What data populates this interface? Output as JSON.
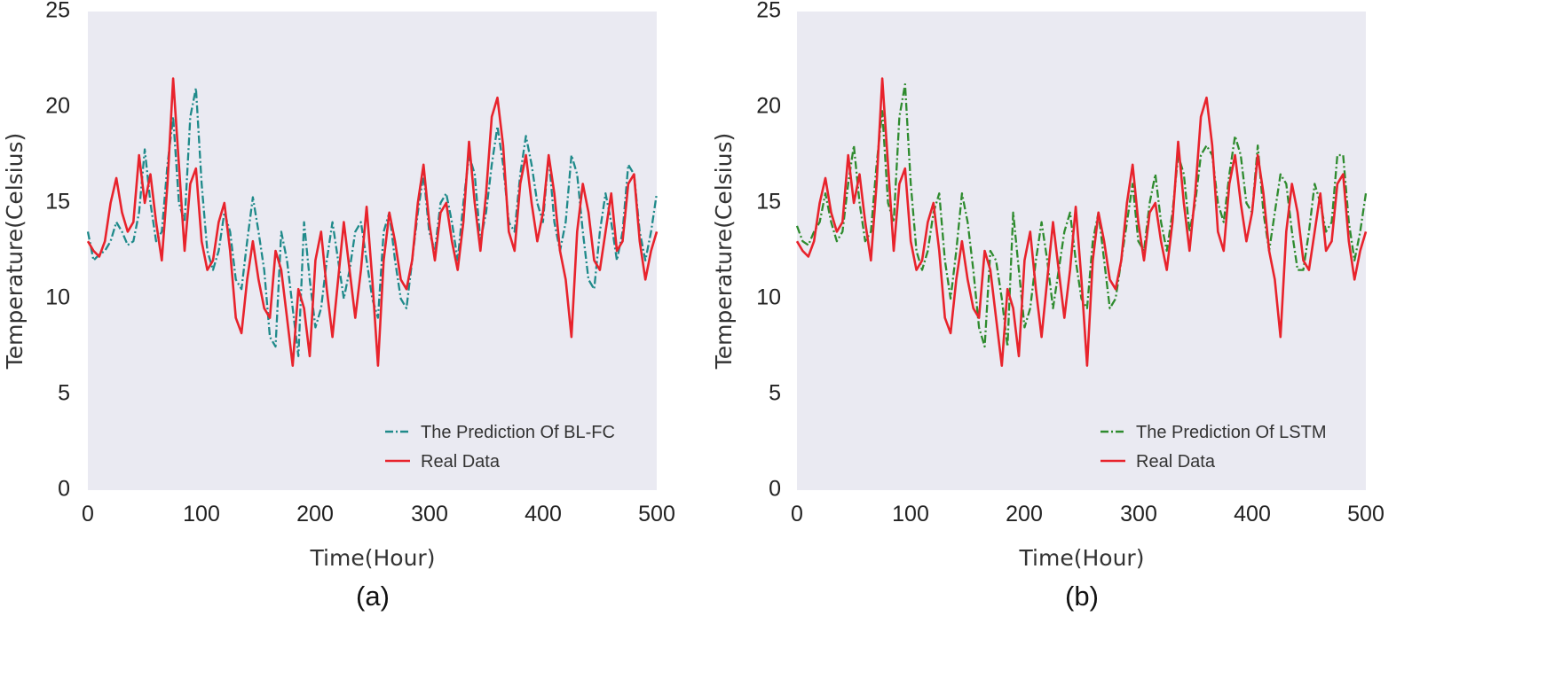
{
  "chart_data": [
    {
      "type": "line",
      "panel_label": "(a)",
      "title": "",
      "xlabel": "Time(Hour)",
      "ylabel": "Temperature(Celsius)",
      "xlim": [
        0,
        500
      ],
      "ylim": [
        0,
        25
      ],
      "xticks": [
        0,
        100,
        200,
        300,
        400,
        500
      ],
      "xtick_labels": [
        "0",
        "100",
        "200",
        "300",
        "400",
        "500"
      ],
      "yticks": [
        0,
        5,
        10,
        15,
        20,
        25
      ],
      "ytick_labels": [
        "0",
        "5",
        "10",
        "15",
        "20",
        "25"
      ],
      "grid": false,
      "legend_position": "lower-right",
      "series": [
        {
          "name": "The Prediction Of BL-FC",
          "color": "#1f8a8a",
          "style": "dashdot",
          "x": [
            0,
            5,
            10,
            15,
            20,
            25,
            30,
            35,
            40,
            45,
            50,
            55,
            60,
            65,
            70,
            75,
            80,
            85,
            90,
            95,
            100,
            105,
            110,
            115,
            120,
            125,
            130,
            135,
            140,
            145,
            150,
            155,
            160,
            165,
            170,
            175,
            180,
            185,
            190,
            195,
            200,
            205,
            210,
            215,
            220,
            225,
            230,
            235,
            240,
            245,
            250,
            255,
            260,
            265,
            270,
            275,
            280,
            285,
            290,
            295,
            300,
            305,
            310,
            315,
            320,
            325,
            330,
            335,
            340,
            345,
            350,
            355,
            360,
            365,
            370,
            375,
            380,
            385,
            390,
            395,
            400,
            405,
            410,
            415,
            420,
            425,
            430,
            435,
            440,
            445,
            450,
            455,
            460,
            465,
            470,
            475,
            480,
            485,
            490,
            495,
            500
          ],
          "values": [
            13.5,
            12.0,
            12.3,
            12.5,
            13.0,
            14.0,
            13.5,
            12.8,
            13.0,
            14.5,
            17.8,
            15.0,
            13.0,
            13.5,
            17.0,
            19.5,
            15.0,
            14.0,
            19.5,
            21.0,
            16.0,
            12.5,
            11.5,
            12.5,
            14.5,
            13.5,
            11.0,
            10.5,
            13.0,
            15.3,
            13.5,
            11.5,
            8.0,
            7.5,
            13.5,
            12.0,
            9.5,
            7.0,
            14.0,
            11.0,
            8.5,
            9.5,
            12.0,
            14.0,
            12.0,
            10.0,
            11.5,
            13.5,
            14.0,
            12.0,
            10.0,
            9.0,
            13.5,
            14.5,
            12.0,
            10.0,
            9.5,
            12.0,
            14.5,
            16.5,
            13.5,
            12.5,
            15.0,
            15.5,
            14.0,
            12.0,
            15.0,
            17.5,
            16.5,
            13.0,
            14.5,
            17.0,
            19.0,
            17.0,
            14.0,
            13.5,
            16.5,
            18.5,
            17.0,
            15.0,
            14.0,
            17.5,
            14.0,
            12.5,
            14.0,
            17.5,
            16.5,
            13.5,
            11.0,
            10.5,
            13.5,
            15.5,
            14.0,
            12.0,
            13.5,
            17.0,
            16.5,
            13.5,
            12.0,
            13.5,
            15.5
          ]
        },
        {
          "name": "Real Data",
          "color": "#e8232c",
          "style": "solid",
          "x": [
            0,
            5,
            10,
            15,
            20,
            25,
            30,
            35,
            40,
            45,
            50,
            55,
            60,
            65,
            70,
            75,
            80,
            85,
            90,
            95,
            100,
            105,
            110,
            115,
            120,
            125,
            130,
            135,
            140,
            145,
            150,
            155,
            160,
            165,
            170,
            175,
            180,
            185,
            190,
            195,
            200,
            205,
            210,
            215,
            220,
            225,
            230,
            235,
            240,
            245,
            250,
            255,
            260,
            265,
            270,
            275,
            280,
            285,
            290,
            295,
            300,
            305,
            310,
            315,
            320,
            325,
            330,
            335,
            340,
            345,
            350,
            355,
            360,
            365,
            370,
            375,
            380,
            385,
            390,
            395,
            400,
            405,
            410,
            415,
            420,
            425,
            430,
            435,
            440,
            445,
            450,
            455,
            460,
            465,
            470,
            475,
            480,
            485,
            490,
            495,
            500
          ],
          "values": [
            13.0,
            12.5,
            12.2,
            13.0,
            15.0,
            16.3,
            14.5,
            13.5,
            14.0,
            17.5,
            15.0,
            16.5,
            14.0,
            12.0,
            16.0,
            21.5,
            17.0,
            12.5,
            16.0,
            16.8,
            13.0,
            11.5,
            12.0,
            14.0,
            15.0,
            12.5,
            9.0,
            8.2,
            11.0,
            13.0,
            11.0,
            9.5,
            9.0,
            12.5,
            11.5,
            9.0,
            6.5,
            10.5,
            9.5,
            7.0,
            12.0,
            13.5,
            10.5,
            8.0,
            11.0,
            14.0,
            11.5,
            9.0,
            11.5,
            14.8,
            11.0,
            6.5,
            12.0,
            14.5,
            13.0,
            11.0,
            10.5,
            12.0,
            15.0,
            17.0,
            14.0,
            12.0,
            14.5,
            15.0,
            13.0,
            11.5,
            14.0,
            18.2,
            15.0,
            12.5,
            15.5,
            19.5,
            20.5,
            18.0,
            13.5,
            12.5,
            16.0,
            17.5,
            15.0,
            13.0,
            14.5,
            17.5,
            15.5,
            12.5,
            11.0,
            8.0,
            13.5,
            16.0,
            14.5,
            12.0,
            11.5,
            13.5,
            15.5,
            12.5,
            13.0,
            16.0,
            16.5,
            13.0,
            11.0,
            12.5,
            13.5
          ]
        }
      ]
    },
    {
      "type": "line",
      "panel_label": "(b)",
      "title": "",
      "xlabel": "Time(Hour)",
      "ylabel": "Temperature(Celsius)",
      "xlim": [
        0,
        500
      ],
      "ylim": [
        0,
        25
      ],
      "xticks": [
        0,
        100,
        200,
        300,
        400,
        500
      ],
      "xtick_labels": [
        "0",
        "100",
        "200",
        "300",
        "400",
        "500"
      ],
      "yticks": [
        0,
        5,
        10,
        15,
        20,
        25
      ],
      "ytick_labels": [
        "0",
        "5",
        "10",
        "15",
        "20",
        "25"
      ],
      "grid": false,
      "legend_position": "lower-right",
      "series": [
        {
          "name": "The Prediction Of LSTM",
          "color": "#2e8b2e",
          "style": "dashdot",
          "x": [
            0,
            5,
            10,
            15,
            20,
            25,
            30,
            35,
            40,
            45,
            50,
            55,
            60,
            65,
            70,
            75,
            80,
            85,
            90,
            95,
            100,
            105,
            110,
            115,
            120,
            125,
            130,
            135,
            140,
            145,
            150,
            155,
            160,
            165,
            170,
            175,
            180,
            185,
            190,
            195,
            200,
            205,
            210,
            215,
            220,
            225,
            230,
            235,
            240,
            245,
            250,
            255,
            260,
            265,
            270,
            275,
            280,
            285,
            290,
            295,
            300,
            305,
            310,
            315,
            320,
            325,
            330,
            335,
            340,
            345,
            350,
            355,
            360,
            365,
            370,
            375,
            380,
            385,
            390,
            395,
            400,
            405,
            410,
            415,
            420,
            425,
            430,
            435,
            440,
            445,
            450,
            455,
            460,
            465,
            470,
            475,
            480,
            485,
            490,
            495,
            500
          ],
          "values": [
            13.8,
            13.0,
            12.8,
            13.5,
            14.0,
            15.5,
            14.0,
            13.0,
            13.5,
            16.0,
            18.0,
            15.0,
            13.0,
            13.5,
            17.0,
            19.8,
            15.0,
            14.0,
            19.5,
            21.2,
            16.0,
            12.5,
            11.5,
            12.5,
            14.5,
            15.5,
            12.0,
            10.0,
            12.5,
            15.5,
            14.0,
            11.5,
            8.5,
            7.5,
            12.5,
            12.0,
            10.0,
            7.5,
            14.5,
            11.5,
            8.5,
            9.5,
            12.0,
            14.0,
            12.0,
            9.5,
            11.5,
            13.5,
            14.5,
            12.0,
            10.0,
            9.5,
            13.0,
            14.5,
            12.0,
            9.5,
            10.0,
            12.0,
            14.0,
            16.0,
            13.0,
            12.5,
            15.0,
            16.5,
            14.0,
            12.5,
            14.5,
            17.5,
            16.5,
            13.5,
            15.0,
            17.5,
            18.0,
            17.5,
            15.0,
            14.0,
            16.5,
            18.5,
            17.5,
            15.0,
            14.5,
            18.0,
            14.5,
            12.5,
            14.5,
            16.5,
            16.0,
            13.5,
            11.5,
            11.5,
            13.5,
            16.0,
            15.0,
            13.5,
            14.0,
            17.5,
            17.5,
            14.0,
            12.0,
            13.5,
            15.5
          ]
        },
        {
          "name": "Real Data",
          "color": "#e8232c",
          "style": "solid",
          "x": [
            0,
            5,
            10,
            15,
            20,
            25,
            30,
            35,
            40,
            45,
            50,
            55,
            60,
            65,
            70,
            75,
            80,
            85,
            90,
            95,
            100,
            105,
            110,
            115,
            120,
            125,
            130,
            135,
            140,
            145,
            150,
            155,
            160,
            165,
            170,
            175,
            180,
            185,
            190,
            195,
            200,
            205,
            210,
            215,
            220,
            225,
            230,
            235,
            240,
            245,
            250,
            255,
            260,
            265,
            270,
            275,
            280,
            285,
            290,
            295,
            300,
            305,
            310,
            315,
            320,
            325,
            330,
            335,
            340,
            345,
            350,
            355,
            360,
            365,
            370,
            375,
            380,
            385,
            390,
            395,
            400,
            405,
            410,
            415,
            420,
            425,
            430,
            435,
            440,
            445,
            450,
            455,
            460,
            465,
            470,
            475,
            480,
            485,
            490,
            495,
            500
          ],
          "values": [
            13.0,
            12.5,
            12.2,
            13.0,
            15.0,
            16.3,
            14.5,
            13.5,
            14.0,
            17.5,
            15.0,
            16.5,
            14.0,
            12.0,
            16.0,
            21.5,
            17.0,
            12.5,
            16.0,
            16.8,
            13.0,
            11.5,
            12.0,
            14.0,
            15.0,
            12.5,
            9.0,
            8.2,
            11.0,
            13.0,
            11.0,
            9.5,
            9.0,
            12.5,
            11.5,
            9.0,
            6.5,
            10.5,
            9.5,
            7.0,
            12.0,
            13.5,
            10.5,
            8.0,
            11.0,
            14.0,
            11.5,
            9.0,
            11.5,
            14.8,
            11.0,
            6.5,
            12.0,
            14.5,
            13.0,
            11.0,
            10.5,
            12.0,
            15.0,
            17.0,
            14.0,
            12.0,
            14.5,
            15.0,
            13.0,
            11.5,
            14.0,
            18.2,
            15.0,
            12.5,
            15.5,
            19.5,
            20.5,
            18.0,
            13.5,
            12.5,
            16.0,
            17.5,
            15.0,
            13.0,
            14.5,
            17.5,
            15.5,
            12.5,
            11.0,
            8.0,
            13.5,
            16.0,
            14.5,
            12.0,
            11.5,
            13.5,
            15.5,
            12.5,
            13.0,
            16.0,
            16.5,
            13.0,
            11.0,
            12.5,
            13.5
          ]
        }
      ]
    }
  ]
}
